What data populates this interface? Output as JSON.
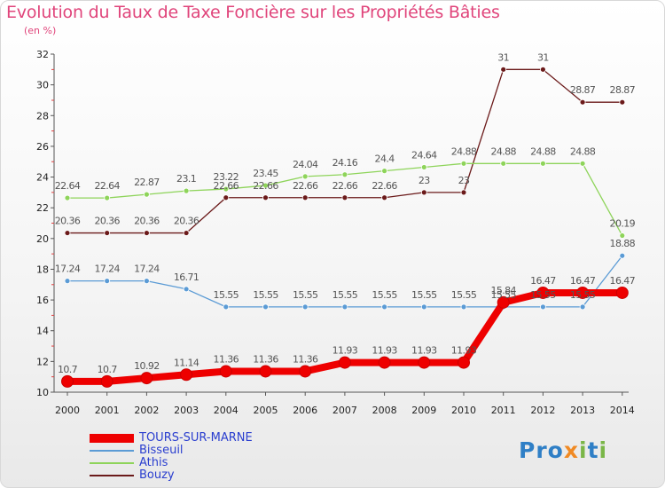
{
  "title": "Evolution du Taux de Taxe Foncière sur les Propriétés Bâties",
  "subtitle": "(en %)",
  "logo": {
    "text": "Proxiti",
    "letters": [
      "P",
      "r",
      "o",
      "x",
      "i",
      "t",
      "i"
    ],
    "colors": [
      "#2f7fc6",
      "#2f7fc6",
      "#2f7fc6",
      "#f08a24",
      "#7ab648",
      "#2f7fc6",
      "#7ab648"
    ]
  },
  "chart_data": {
    "type": "line",
    "title": "Evolution du Taux de Taxe Foncière sur les Propriétés Bâties",
    "ylabel": "(en %)",
    "xlabel": "",
    "categories": [
      "2000",
      "2001",
      "2002",
      "2003",
      "2004",
      "2005",
      "2006",
      "2007",
      "2008",
      "2009",
      "2010",
      "2011",
      "2012",
      "2013",
      "2014"
    ],
    "ylim": [
      10,
      32
    ],
    "yticks": [
      10,
      12,
      14,
      16,
      18,
      20,
      22,
      24,
      26,
      28,
      30,
      32
    ],
    "grid": false,
    "legend_position": "bottom-left",
    "series": [
      {
        "name": "TOURS-SUR-MARNE",
        "color": "#ee0000",
        "emphasis": true,
        "values": [
          10.7,
          10.7,
          10.92,
          11.14,
          11.36,
          11.36,
          11.36,
          11.93,
          11.93,
          11.93,
          11.93,
          15.84,
          16.47,
          16.47,
          16.47
        ],
        "labels": [
          "10.7",
          "10.7",
          "10.92",
          "11.14",
          "11.36",
          "11.36",
          "11.36",
          "11.93",
          "11.93",
          "11.93",
          "11.93",
          "15.84",
          "16.47",
          "16.47",
          "16.47"
        ]
      },
      {
        "name": "Bisseuil",
        "color": "#5b9bd5",
        "values": [
          17.24,
          17.24,
          17.24,
          16.71,
          15.55,
          15.55,
          15.55,
          15.55,
          15.55,
          15.55,
          15.55,
          15.55,
          15.55,
          15.55,
          18.88
        ],
        "labels": [
          "17.24",
          "17.24",
          "17.24",
          "16.71",
          "15.55",
          "15.55",
          "15.55",
          "15.55",
          "15.55",
          "15.55",
          "15.55",
          "15.55",
          "15.55",
          "15.55",
          "18.88"
        ]
      },
      {
        "name": "Athis",
        "color": "#8ed45a",
        "values": [
          22.64,
          22.64,
          22.87,
          23.1,
          23.22,
          23.45,
          24.04,
          24.16,
          24.4,
          24.64,
          24.88,
          24.88,
          24.88,
          24.88,
          20.19
        ],
        "labels": [
          "22.64",
          "22.64",
          "22.87",
          "23.1",
          "23.22",
          "23.45",
          "24.04",
          "24.16",
          "24.4",
          "24.64",
          "24.88",
          "24.88",
          "24.88",
          "24.88",
          "20.19"
        ]
      },
      {
        "name": "Bouzy",
        "color": "#6b1a1a",
        "values": [
          20.36,
          20.36,
          20.36,
          20.36,
          22.66,
          22.66,
          22.66,
          22.66,
          22.66,
          23,
          23,
          31,
          31,
          28.87,
          28.87
        ],
        "labels": [
          "20.36",
          "20.36",
          "20.36",
          "20.36",
          "22.66",
          "22.66",
          "22.66",
          "22.66",
          "22.66",
          "23",
          "23",
          "31",
          "31",
          "28.87",
          "28.87"
        ]
      }
    ]
  }
}
